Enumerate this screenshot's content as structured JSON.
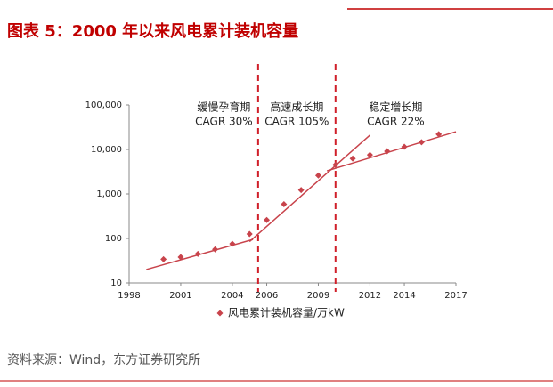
{
  "chart_data": {
    "type": "scatter",
    "title": "图表 5：2000 年以来风电累计装机容量",
    "source": "资料来源：Wind，东方证券研究所",
    "log_scale": true,
    "grid": false,
    "xlim": [
      1998,
      2017
    ],
    "xticks": [
      1998,
      2001,
      2004,
      2006,
      2009,
      2012,
      2014,
      2017
    ],
    "ylim": [
      10,
      100000
    ],
    "yticks": [
      {
        "value": 100000,
        "label": "100,000"
      },
      {
        "value": 10000,
        "label": "10,000"
      },
      {
        "value": 1000,
        "label": "1,000"
      },
      100,
      10
    ],
    "series": [
      {
        "name": "风电累计装机容量/万kW",
        "color": "#c8434b",
        "x": [
          2000,
          2001,
          2002,
          2003,
          2004,
          2005,
          2006,
          2007,
          2008,
          2009,
          2010,
          2011,
          2012,
          2013,
          2014,
          2015,
          2016
        ],
        "values": [
          34,
          38,
          45,
          57,
          76,
          126,
          260,
          590,
          1220,
          2600,
          4480,
          6240,
          7530,
          9140,
          11460,
          14500,
          22000
        ]
      }
    ],
    "trend_lines": [
      {
        "x": [
          1999,
          2005.2
        ],
        "values": [
          20,
          95
        ]
      },
      {
        "x": [
          2005,
          2012
        ],
        "values": [
          85,
          21000
        ]
      },
      {
        "x": [
          2009.5,
          2017
        ],
        "values": [
          3300,
          25000
        ]
      }
    ],
    "dividers": [
      2005.5,
      2010
    ],
    "annotations": [
      {
        "period": "缓慢孕育期",
        "cagr": "CAGR 30%"
      },
      {
        "period": "高速成长期",
        "cagr": "CAGR 105%"
      },
      {
        "period": "稳定增长期",
        "cagr": "CAGR 22%"
      }
    ]
  }
}
